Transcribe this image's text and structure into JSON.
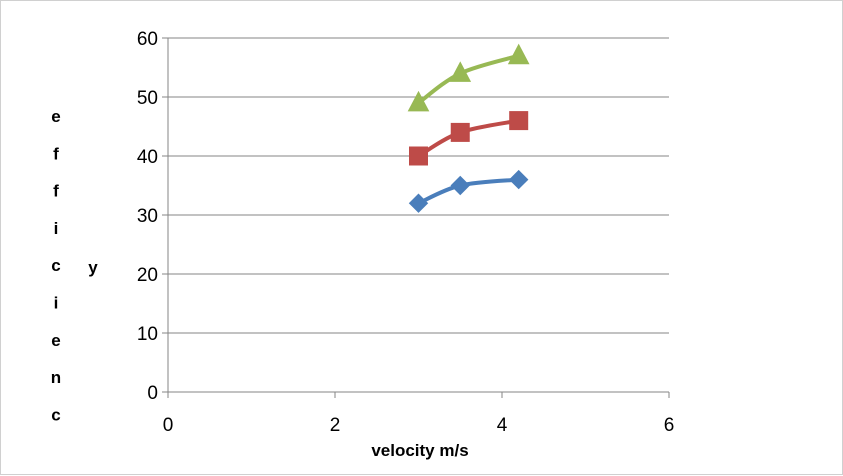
{
  "chart_data": {
    "type": "line",
    "title": "",
    "xlabel": "velocity m/s",
    "ylabel_letters": [
      "e",
      "f",
      "f",
      "i",
      "c",
      "i",
      "e",
      "n",
      "c"
    ],
    "ylabel_tail": "y",
    "xlim": [
      0,
      6
    ],
    "ylim": [
      0,
      60
    ],
    "x_ticks": [
      0,
      2,
      4,
      6
    ],
    "y_ticks": [
      0,
      10,
      20,
      30,
      40,
      50,
      60
    ],
    "grid": "horizontal",
    "legend": "none",
    "series": [
      {
        "x": [
          3,
          3.5,
          4.2
        ],
        "values": [
          32,
          35,
          36
        ],
        "color": "#4a7ebb",
        "marker": "diamond"
      },
      {
        "x": [
          3,
          3.5,
          4.2
        ],
        "values": [
          40,
          44,
          46
        ],
        "color": "#be4b48",
        "marker": "square"
      },
      {
        "x": [
          3,
          3.5,
          4.2
        ],
        "values": [
          49,
          54,
          57
        ],
        "color": "#98b954",
        "marker": "triangle"
      }
    ]
  }
}
